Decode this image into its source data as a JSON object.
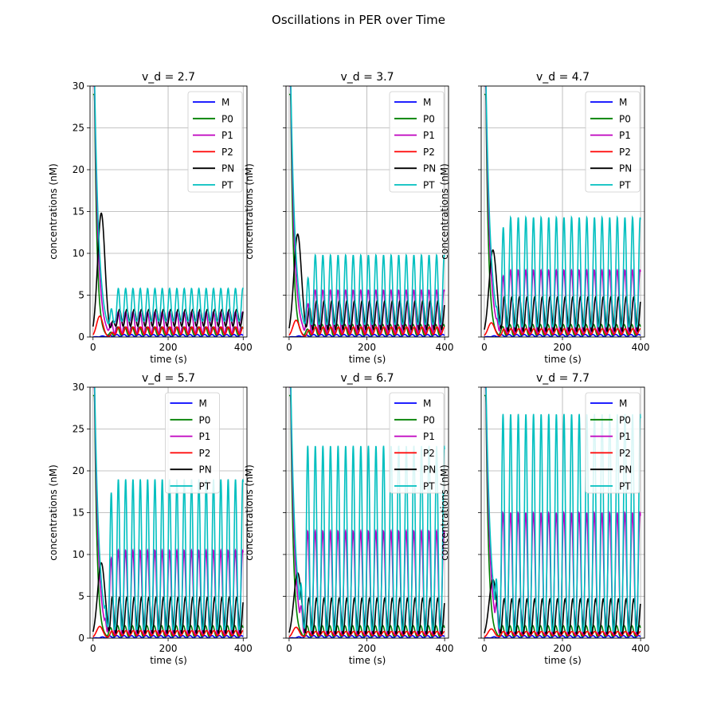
{
  "suptitle": "Oscillations in PER over Time",
  "chart_data": {
    "type": "line",
    "shared": {
      "xlabel": "time (s)",
      "ylabel": "concentrations (nM)",
      "xlim": [
        -8,
        410
      ],
      "ylim": [
        0,
        30
      ],
      "xticks": [
        0,
        200,
        400
      ],
      "yticks": [
        0,
        5,
        10,
        15,
        20,
        25,
        30
      ],
      "grid": true,
      "legend_entries": [
        "M",
        "P0",
        "P1",
        "P2",
        "PN",
        "PT"
      ],
      "series_colors": {
        "M": "#0000ff",
        "P0": "#008000",
        "P1": "#bf00bf",
        "P2": "#ff0000",
        "PN": "#000000",
        "PT": "#00bfbf"
      }
    },
    "panels": [
      {
        "title": "v_d = 2.7",
        "legend_position": "top-right",
        "period": 19.5,
        "transient_end": 60,
        "initial_peaks": {
          "PT": 31,
          "P1": 30,
          "P0": 29,
          "PN": 14.8,
          "P2": 2.5
        },
        "oscillation": {
          "M": [
            0.05,
            0.3
          ],
          "P0": [
            0.2,
            1.2
          ],
          "P1": [
            0.4,
            3.0
          ],
          "P2": [
            0.3,
            1.2
          ],
          "PN": [
            1.3,
            3.3
          ],
          "PT": [
            1.9,
            5.8
          ]
        }
      },
      {
        "title": "v_d = 3.7",
        "legend_position": "top-right",
        "period": 19.5,
        "transient_end": 55,
        "initial_peaks": {
          "PT": 31,
          "P1": 30,
          "P0": 29,
          "PN": 12.3,
          "P2": 2.0
        },
        "oscillation": {
          "M": [
            0.05,
            0.3
          ],
          "P0": [
            0.2,
            1.5
          ],
          "P1": [
            0.4,
            5.6
          ],
          "P2": [
            0.3,
            1.2
          ],
          "PN": [
            0.9,
            4.3
          ],
          "PT": [
            1.5,
            9.8
          ]
        }
      },
      {
        "title": "v_d = 4.7",
        "legend_position": "top-right",
        "period": 19.5,
        "transient_end": 50,
        "initial_peaks": {
          "PT": 31,
          "P1": 30,
          "P0": 29,
          "PN": 10.4,
          "P2": 1.7
        },
        "oscillation": {
          "M": [
            0.05,
            0.3
          ],
          "P0": [
            0.2,
            1.5
          ],
          "P1": [
            0.4,
            8.0
          ],
          "P2": [
            0.3,
            1.0
          ],
          "PN": [
            0.7,
            4.8
          ],
          "PT": [
            1.2,
            14.3
          ]
        }
      },
      {
        "title": "v_d = 5.7",
        "legend_position": "top-center",
        "period": 19.5,
        "transient_end": 50,
        "initial_peaks": {
          "PT": 31,
          "P1": 30,
          "P0": 29,
          "PN": 9.0,
          "P2": 1.4
        },
        "oscillation": {
          "M": [
            0.05,
            0.3
          ],
          "P0": [
            0.2,
            1.5
          ],
          "P1": [
            0.4,
            10.5
          ],
          "P2": [
            0.3,
            0.9
          ],
          "PN": [
            0.6,
            4.9
          ],
          "PT": [
            1.0,
            19.0
          ]
        }
      },
      {
        "title": "v_d = 6.7",
        "legend_position": "top-right",
        "period": 19.5,
        "transient_end": 45,
        "initial_peaks": {
          "PT": 31,
          "P1": 30,
          "P0": 29,
          "PN": 7.8,
          "P2": 1.3
        },
        "oscillation": {
          "M": [
            0.05,
            0.3
          ],
          "P0": [
            0.2,
            1.5
          ],
          "P1": [
            0.4,
            12.8
          ],
          "P2": [
            0.3,
            0.8
          ],
          "PN": [
            0.5,
            4.8
          ],
          "PT": [
            0.9,
            23.0
          ]
        }
      },
      {
        "title": "v_d = 7.7",
        "legend_position": "top-right",
        "period": 19.5,
        "transient_end": 45,
        "initial_peaks": {
          "PT": 31,
          "P1": 30,
          "P0": 29,
          "PN": 7.0,
          "P2": 1.1
        },
        "oscillation": {
          "M": [
            0.05,
            0.3
          ],
          "P0": [
            0.2,
            1.5
          ],
          "P1": [
            0.4,
            15.0
          ],
          "P2": [
            0.3,
            0.8
          ],
          "PN": [
            0.5,
            4.7
          ],
          "PT": [
            0.8,
            26.8
          ]
        }
      }
    ]
  }
}
